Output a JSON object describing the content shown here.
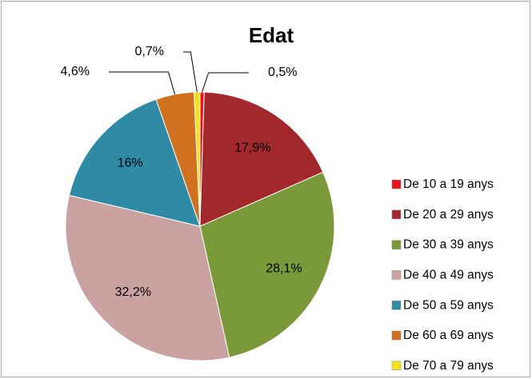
{
  "chart_data": {
    "type": "pie",
    "title": "Edat",
    "categories": [
      "De 10 a 19 anys",
      "De 20 a 29 anys",
      "De 30 a 39 anys",
      "De 40 a 49 anys",
      "De 50 a 59 anys",
      "De 60 a 69 anys",
      "De 70 a 79 anys"
    ],
    "values": [
      0.5,
      17.9,
      28.1,
      32.2,
      16,
      4.6,
      0.7
    ],
    "value_labels": [
      "0,5%",
      "17,9%",
      "28,1%",
      "32,2%",
      "16%",
      "4,6%",
      "0,7%"
    ],
    "colors": [
      "#e8141c",
      "#a3282c",
      "#7a9a3a",
      "#caa2a2",
      "#2f8aa6",
      "#d0711f",
      "#f2e21c"
    ],
    "legend": "right"
  }
}
